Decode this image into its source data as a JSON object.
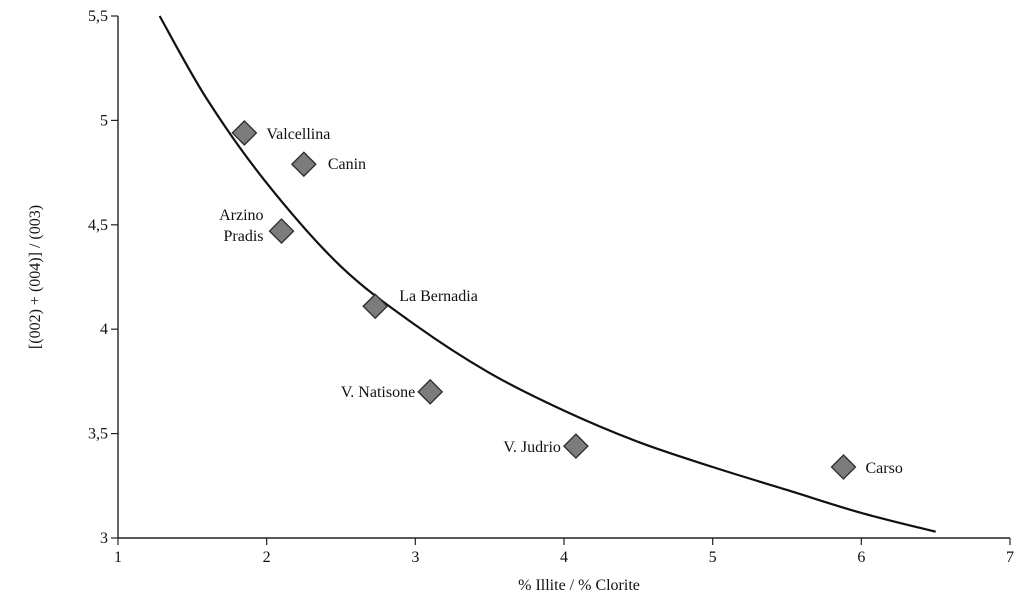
{
  "chart_data": {
    "type": "scatter",
    "title": "",
    "xlabel": "% Illite / % Clorite",
    "ylabel": "[(002) + (004)] / (003)",
    "xlim": [
      1,
      7
    ],
    "ylim": [
      3,
      5.5
    ],
    "x_ticks": [
      "1",
      "2",
      "3",
      "4",
      "5",
      "6",
      "7"
    ],
    "y_ticks": [
      "3",
      "3,5",
      "4",
      "4,5",
      "5",
      "5,5"
    ],
    "grid": false,
    "legend": "none",
    "points": [
      {
        "label": "Valcellina",
        "x": 1.85,
        "y": 4.94
      },
      {
        "label": "Canin",
        "x": 2.25,
        "y": 4.79
      },
      {
        "label": "Arzino",
        "label2": "Pradis",
        "x": 2.1,
        "y": 4.47
      },
      {
        "label": "La Bernadia",
        "x": 2.73,
        "y": 4.11
      },
      {
        "label": "V. Natisone",
        "x": 3.1,
        "y": 3.7
      },
      {
        "label": "V. Judrio",
        "x": 4.08,
        "y": 3.44
      },
      {
        "label": "Carso",
        "x": 5.88,
        "y": 3.34
      }
    ],
    "trend_line": {
      "x": [
        1.28,
        1.6,
        2.0,
        2.5,
        3.0,
        3.5,
        4.0,
        4.5,
        5.0,
        5.5,
        6.0,
        6.5
      ],
      "y": [
        5.5,
        5.1,
        4.7,
        4.3,
        4.02,
        3.79,
        3.61,
        3.46,
        3.34,
        3.23,
        3.12,
        3.03
      ]
    },
    "colors": {
      "marker_fill": "#7c7c7c",
      "marker_stroke": "#2b2b2b",
      "line": "#111111"
    }
  }
}
